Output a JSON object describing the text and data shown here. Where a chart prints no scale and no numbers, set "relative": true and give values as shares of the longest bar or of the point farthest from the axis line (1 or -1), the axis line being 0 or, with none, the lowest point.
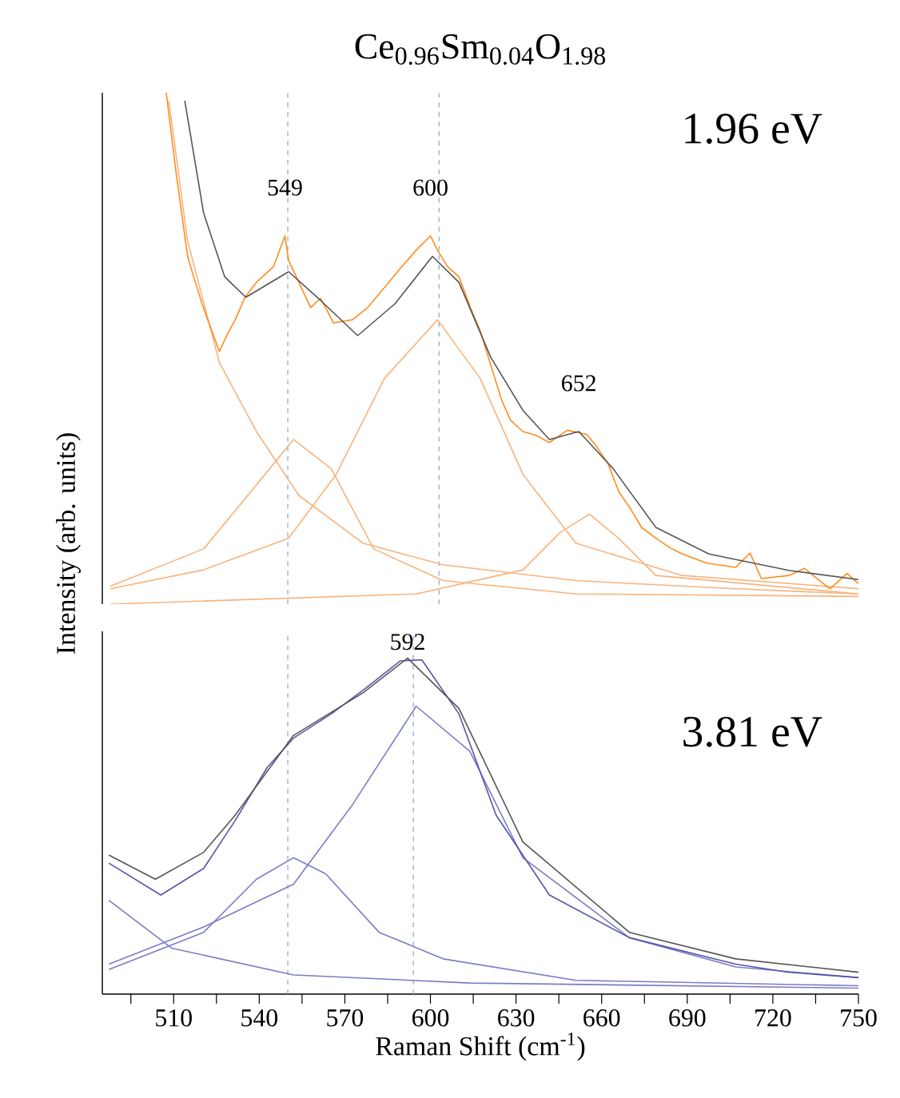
{
  "chart_data": [
    {
      "type": "line",
      "title": "Ce$_{0.96}$Sm$_{0.04}$O$_{1.98}$",
      "ylabel": "Intensity (arb. units)",
      "relative": true,
      "xlim": [
        485,
        750
      ],
      "tick_labels": false,
      "marker": "none",
      "line_style": "solid",
      "annotations": [
        "1.96 eV",
        {
          "text": "549",
          "x": 549,
          "y": 0.72
        },
        {
          "text": "600",
          "x": 600,
          "y": 0.72
        },
        {
          "text": "652",
          "x": 652,
          "y": 0.3375
        }
      ],
      "ref_lines": [
        {
          "axis": "x",
          "value": 550,
          "color": "#7fa7d9",
          "line_style": "dashed"
        },
        {
          "axis": "x",
          "value": 603,
          "color": "#7fa7d9",
          "line_style": "dashed"
        }
      ],
      "series": [
        {
          "color": "#f8b37c",
          "x": [
            508.3,
            514.9,
            526,
            539,
            553.9,
            576.4,
            604.4,
            651,
            707,
            750
          ],
          "values": [
            0.984,
            0.71,
            0.473,
            0.3375,
            0.2125,
            0.119,
            0.077,
            0.046,
            0.03,
            0.02
          ]
        },
        {
          "color": "#f8b37c",
          "x": [
            487.8,
            520.5,
            539,
            552,
            565.2,
            580.1,
            604.4,
            651,
            750
          ],
          "values": [
            0.035,
            0.108,
            0.233,
            0.322,
            0.265,
            0.108,
            0.046,
            0.02,
            0.015
          ]
        },
        {
          "color": "#f8b37c",
          "x": [
            487.8,
            520.5,
            550.3,
            567,
            583.9,
            602.5,
            617.4,
            632.4,
            651,
            688.3,
            750
          ],
          "values": [
            0.03,
            0.067,
            0.129,
            0.254,
            0.4416,
            0.556,
            0.4416,
            0.254,
            0.119,
            0.056,
            0.03
          ]
        },
        {
          "color": "#f8b37c",
          "x": [
            487.8,
            595,
            632.4,
            645.4,
            655.7,
            665.9,
            679,
            750
          ],
          "values": [
            0.0,
            0.02,
            0.067,
            0.14,
            0.176,
            0.129,
            0.056,
            0.02
          ]
        },
        {
          "color": "#ff8c1a",
          "x": [
            507.4,
            511,
            514.9,
            517,
            520.5,
            523,
            526,
            529,
            531.6,
            535,
            539,
            545,
            549,
            550.3,
            553,
            558,
            561.5,
            566,
            572.7,
            578,
            583.9,
            590,
            595,
            600,
            602.5,
            606,
            610,
            614,
            617.4,
            621,
            624.9,
            628,
            632.4,
            637,
            641.7,
            648,
            654.7,
            658,
            662.2,
            666,
            669.7,
            674,
            679,
            684,
            688.3,
            697,
            707,
            712,
            716,
            725.6,
            731,
            740,
            746,
            750
          ],
          "values": [
            1.0,
            0.8375,
            0.68,
            0.64,
            0.578,
            0.54,
            0.494,
            0.53,
            0.556,
            0.6,
            0.629,
            0.66,
            0.72,
            0.672,
            0.64,
            0.58,
            0.598,
            0.55,
            0.556,
            0.58,
            0.619,
            0.66,
            0.692,
            0.72,
            0.692,
            0.66,
            0.64,
            0.58,
            0.535,
            0.47,
            0.4,
            0.36,
            0.3375,
            0.33,
            0.316,
            0.34,
            0.332,
            0.31,
            0.275,
            0.22,
            0.19,
            0.15,
            0.129,
            0.11,
            0.098,
            0.08,
            0.072,
            0.1,
            0.05,
            0.056,
            0.07,
            0.03,
            0.06,
            0.04
          ]
        },
        {
          "color": "#555555",
          "x": [
            513.9,
            520.5,
            527.9,
            535.3,
            550.3,
            561.5,
            574.5,
            587.6,
            600.7,
            610,
            621.1,
            632.4,
            641.7,
            652,
            664,
            679,
            697.6,
            725.6,
            750
          ],
          "values": [
            0.984,
            0.765,
            0.64,
            0.6,
            0.65,
            0.5938,
            0.525,
            0.5875,
            0.68,
            0.629,
            0.483,
            0.379,
            0.322,
            0.3375,
            0.265,
            0.15,
            0.098,
            0.066,
            0.048
          ]
        }
      ]
    },
    {
      "type": "line",
      "xlabel": "Raman Shift (cm$^{-1}$)",
      "relative": true,
      "xlim": [
        485,
        750
      ],
      "tick_labels": "x",
      "marker": "none",
      "line_style": "solid",
      "xticks": [
        {
          "value": 495,
          "label": null
        },
        510,
        {
          "value": 525,
          "label": null
        },
        540,
        {
          "value": 555,
          "label": null
        },
        570,
        {
          "value": 585,
          "label": null
        },
        600,
        {
          "value": 615,
          "label": null
        },
        630,
        {
          "value": 645,
          "label": null
        },
        660,
        {
          "value": 675,
          "label": null
        },
        690,
        {
          "value": 705,
          "label": null
        },
        720,
        {
          "value": 735,
          "label": null
        },
        750
      ],
      "annotations": [
        "3.81 eV",
        {
          "text": "592",
          "x": 592,
          "y": 1.0
        }
      ],
      "ref_lines": [
        {
          "axis": "x",
          "value": 550,
          "color": "#7fa7d9",
          "line_style": "dashed"
        },
        {
          "axis": "x",
          "value": 594,
          "color": "#7fa7d9",
          "line_style": "dashed"
        }
      ],
      "series": [
        {
          "color": "#7b7bc8",
          "x": [
            487.3,
            509.3,
            552,
            613.8,
            750
          ],
          "values": [
            0.279,
            0.137,
            0.057,
            0.033,
            0.018
          ]
        },
        {
          "color": "#7b7bc8",
          "x": [
            487.3,
            520.5,
            539,
            552,
            563.3,
            582,
            604.4,
            651,
            750
          ],
          "values": [
            0.073,
            0.184,
            0.342,
            0.406,
            0.358,
            0.184,
            0.105,
            0.041,
            0.025
          ]
        },
        {
          "color": "#7b7bc8",
          "x": [
            487.3,
            520.5,
            552,
            572.7,
            595,
            613.8,
            632.4,
            669.7,
            707,
            750
          ],
          "values": [
            0.089,
            0.2,
            0.327,
            0.564,
            0.857,
            0.723,
            0.406,
            0.168,
            0.081,
            0.049
          ]
        },
        {
          "color": "#5555aa",
          "x": [
            487.3,
            505.5,
            520.5,
            531.6,
            542.8,
            552,
            565.2,
            576.4,
            589.5,
            597,
            610,
            623,
            641.7,
            669.7,
            707,
            725.6,
            750
          ],
          "values": [
            0.39,
            0.295,
            0.374,
            0.517,
            0.675,
            0.762,
            0.834,
            0.905,
            0.992,
            0.995,
            0.834,
            0.533,
            0.295,
            0.168,
            0.089,
            0.065,
            0.049
          ]
        },
        {
          "color": "#555555",
          "x": [
            487.3,
            503.6,
            520.5,
            531.6,
            552,
            576.4,
            592,
            610,
            632.4,
            669.7,
            707,
            750
          ],
          "values": [
            0.414,
            0.342,
            0.422,
            0.533,
            0.77,
            0.897,
            1.0,
            0.85,
            0.453,
            0.184,
            0.105,
            0.065
          ]
        }
      ]
    }
  ]
}
